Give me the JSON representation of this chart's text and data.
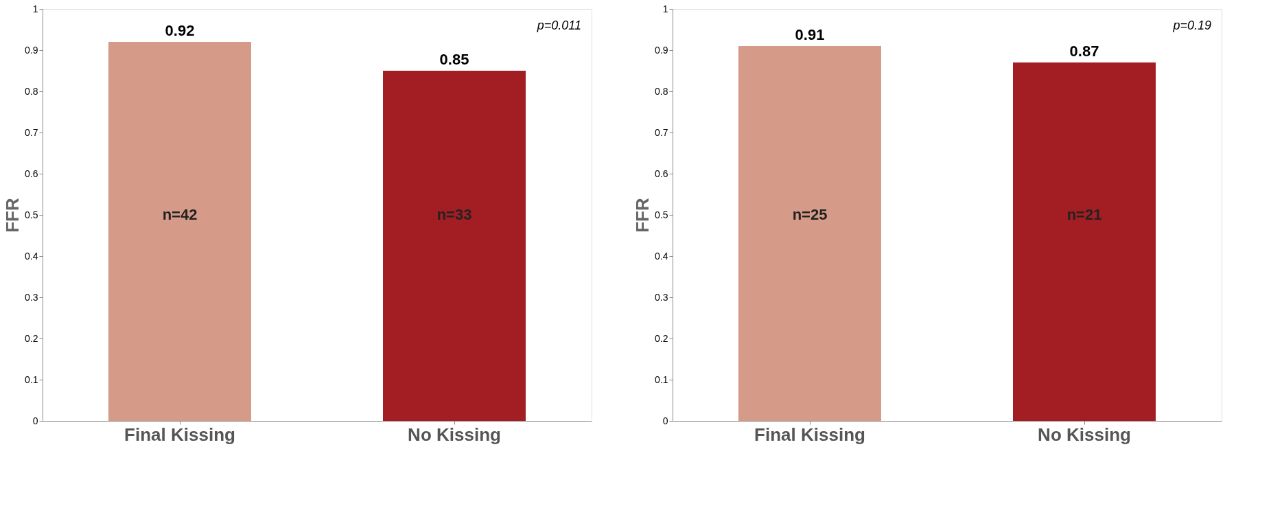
{
  "chart_data": [
    {
      "type": "bar",
      "categories": [
        "Final Kissing",
        "No Kissing"
      ],
      "values": [
        0.92,
        0.85
      ],
      "colors": [
        "#d59a88",
        "#a31e23"
      ],
      "ylabel": "FFR",
      "ylim": [
        0,
        1
      ],
      "yticks": [
        0,
        0.1,
        0.2,
        0.3,
        0.4,
        0.5,
        0.6,
        0.7,
        0.8,
        0.9,
        1
      ],
      "data_labels": true,
      "grid": false,
      "annotations": [
        "n=42",
        "n=33",
        "p=0.011"
      ]
    },
    {
      "type": "bar",
      "categories": [
        "Final Kissing",
        "No Kissing"
      ],
      "values": [
        0.91,
        0.87
      ],
      "colors": [
        "#d59a88",
        "#a31e23"
      ],
      "ylabel": "FFR",
      "ylim": [
        0,
        1
      ],
      "yticks": [
        0,
        0.1,
        0.2,
        0.3,
        0.4,
        0.5,
        0.6,
        0.7,
        0.8,
        0.9,
        1
      ],
      "data_labels": true,
      "grid": false,
      "annotations": [
        "n=25",
        "n=21",
        "p=0.19"
      ]
    }
  ]
}
